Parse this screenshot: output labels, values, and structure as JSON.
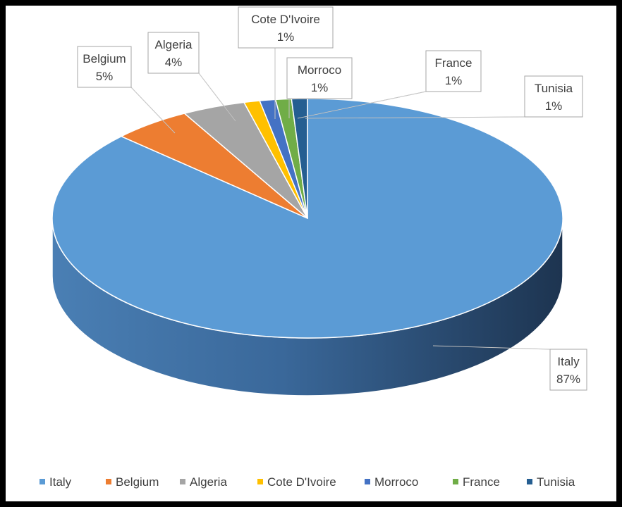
{
  "chart_data": {
    "type": "pie",
    "title": "",
    "categories": [
      "Italy",
      "Belgium",
      "Algeria",
      "Cote D'Ivoire",
      "Morroco",
      "France",
      "Tunisia"
    ],
    "values": [
      87,
      5,
      4,
      1,
      1,
      1,
      1
    ],
    "value_labels": [
      "87%",
      "5%",
      "4%",
      "1%",
      "1%",
      "1%",
      "1%"
    ],
    "colors": [
      "#5b9bd5",
      "#ed7d31",
      "#a5a5a5",
      "#ffc000",
      "#4472c4",
      "#70ad47",
      "#255e91"
    ],
    "legend_position": "bottom",
    "style": "3d-pie with callout labels"
  }
}
